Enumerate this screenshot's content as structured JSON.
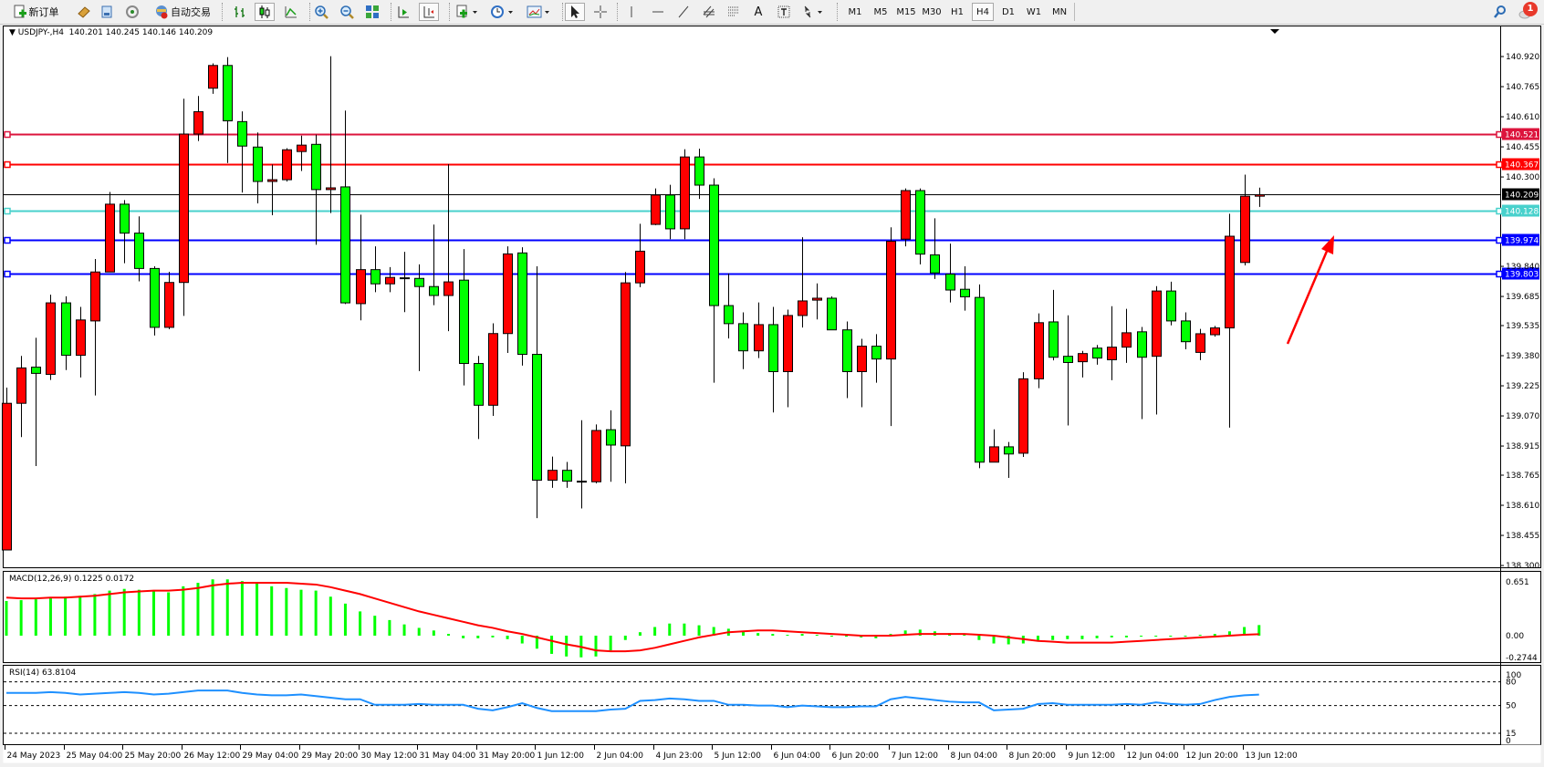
{
  "toolbar": {
    "new_order_label": "新订单",
    "autotrading_label": "自动交易",
    "icons": [
      "new-order-icon",
      "market-watch-icon",
      "data-window-icon",
      "navigator-icon",
      "autotrading-icon",
      "bar-chart-icon",
      "candlestick-icon",
      "line-chart-icon",
      "zoom-in-icon",
      "zoom-out-icon",
      "tile-windows-icon",
      "chart-shift-icon",
      "autoscroll-icon",
      "indicators-icon",
      "periods-icon",
      "templates-icon",
      "cursor-icon",
      "crosshair-icon",
      "vertical-line-icon",
      "horizontal-line-icon",
      "trendline-icon",
      "equidistant-channel-icon",
      "fibonacci-icon",
      "text-icon",
      "text-label-icon",
      "arrows-icon",
      "search-icon",
      "alerts-icon"
    ],
    "text_tool_label": "A",
    "timeframes": [
      "M1",
      "M5",
      "M15",
      "M30",
      "H1",
      "H4",
      "D1",
      "W1",
      "MN"
    ],
    "selected_timeframe": "H4",
    "notification_count": "1"
  },
  "chart": {
    "symbol_header": "USDJPY-,H4  140.201 140.245 140.146 140.209",
    "colors": {
      "bull": "#ff0000",
      "bear": "#00ff00",
      "wick": "#000000",
      "macd_hist": "#00ff00",
      "macd_signal": "#ff0000",
      "rsi": "#1e90ff"
    },
    "price_ticks": [
      "140.920",
      "140.765",
      "140.610",
      "140.455",
      "140.300",
      "139.840",
      "139.685",
      "139.535",
      "139.380",
      "139.225",
      "139.070",
      "138.915",
      "138.765",
      "138.610",
      "138.455",
      "138.300"
    ],
    "hlines": [
      {
        "price": "140.521",
        "color": "#dc143c"
      },
      {
        "price": "140.367",
        "color": "#ff0000"
      },
      {
        "price": "140.209",
        "color": "#000000",
        "bid": true
      },
      {
        "price": "140.128",
        "color": "#48d1cc"
      },
      {
        "price": "139.974",
        "color": "#0000ff"
      },
      {
        "price": "139.803",
        "color": "#0000ff"
      }
    ],
    "time_labels": [
      "24 May 2023",
      "25 May 04:00",
      "25 May 20:00",
      "26 May 12:00",
      "29 May 04:00",
      "29 May 20:00",
      "30 May 12:00",
      "31 May 04:00",
      "31 May 20:00",
      "1 Jun 12:00",
      "2 Jun 04:00",
      "4 Jun 23:00",
      "5 Jun 12:00",
      "6 Jun 04:00",
      "6 Jun 20:00",
      "7 Jun 12:00",
      "8 Jun 04:00",
      "8 Jun 20:00",
      "9 Jun 12:00",
      "12 Jun 04:00",
      "12 Jun 20:00",
      "13 Jun 12:00"
    ],
    "annotation": {
      "type": "arrow",
      "color": "#ff0000",
      "direction": "up-right"
    }
  },
  "chart_data": {
    "type": "candlestick",
    "ohlc_order": [
      "open",
      "high",
      "low",
      "close"
    ],
    "ylim": [
      138.3,
      140.98
    ],
    "candles": [
      [
        138.38,
        139.216,
        138.38,
        139.135
      ],
      [
        139.135,
        139.379,
        138.961,
        139.317
      ],
      [
        139.321,
        139.472,
        138.812,
        139.289
      ],
      [
        139.284,
        139.694,
        139.255,
        139.652
      ],
      [
        139.652,
        139.686,
        139.306,
        139.382
      ],
      [
        139.382,
        139.631,
        139.268,
        139.564
      ],
      [
        139.559,
        139.878,
        139.175,
        139.811
      ],
      [
        139.811,
        140.223,
        139.811,
        140.16
      ],
      [
        140.16,
        140.181,
        139.856,
        140.011
      ],
      [
        140.011,
        140.097,
        139.763,
        139.829
      ],
      [
        139.829,
        139.84,
        139.484,
        139.526
      ],
      [
        139.526,
        139.812,
        139.516,
        139.757
      ],
      [
        139.757,
        140.703,
        139.585,
        140.521
      ],
      [
        140.521,
        140.717,
        140.485,
        140.636
      ],
      [
        140.757,
        140.885,
        140.728,
        140.874
      ],
      [
        140.874,
        140.917,
        140.372,
        140.589
      ],
      [
        140.585,
        140.638,
        140.22,
        140.459
      ],
      [
        140.454,
        140.529,
        140.164,
        140.277
      ],
      [
        140.277,
        140.364,
        140.103,
        140.286
      ],
      [
        140.286,
        140.448,
        140.277,
        140.44
      ],
      [
        140.431,
        140.513,
        140.331,
        140.464
      ],
      [
        140.468,
        140.518,
        139.951,
        140.235
      ],
      [
        140.235,
        140.922,
        140.114,
        140.244
      ],
      [
        140.249,
        140.642,
        139.646,
        139.652
      ],
      [
        139.648,
        140.106,
        139.562,
        139.823
      ],
      [
        139.823,
        139.943,
        139.707,
        139.75
      ],
      [
        139.75,
        139.836,
        139.707,
        139.783
      ],
      [
        139.781,
        139.915,
        139.604,
        139.778
      ],
      [
        139.778,
        139.85,
        139.301,
        139.736
      ],
      [
        139.736,
        140.055,
        139.64,
        139.69
      ],
      [
        139.69,
        140.366,
        139.506,
        139.76
      ],
      [
        139.769,
        139.929,
        139.227,
        139.34
      ],
      [
        139.34,
        139.379,
        138.951,
        139.125
      ],
      [
        139.125,
        139.547,
        139.07,
        139.494
      ],
      [
        139.494,
        139.943,
        139.394,
        139.904
      ],
      [
        139.909,
        139.938,
        139.329,
        139.387
      ],
      [
        139.387,
        139.84,
        138.544,
        138.739
      ],
      [
        138.739,
        138.861,
        138.7,
        138.79
      ],
      [
        138.79,
        138.833,
        138.7,
        138.734
      ],
      [
        138.734,
        139.048,
        138.594,
        138.731
      ],
      [
        138.731,
        139.026,
        138.723,
        138.995
      ],
      [
        138.999,
        139.099,
        138.731,
        138.92
      ],
      [
        138.916,
        139.811,
        138.723,
        139.755
      ],
      [
        139.755,
        140.059,
        139.733,
        139.918
      ],
      [
        140.056,
        140.241,
        140.052,
        140.207
      ],
      [
        140.207,
        140.26,
        139.98,
        140.033
      ],
      [
        140.033,
        140.443,
        139.98,
        140.403
      ],
      [
        140.403,
        140.446,
        140.187,
        140.258
      ],
      [
        140.258,
        140.293,
        139.241,
        139.638
      ],
      [
        139.638,
        139.803,
        139.469,
        139.545
      ],
      [
        139.545,
        139.603,
        139.311,
        139.405
      ],
      [
        139.405,
        139.654,
        139.368,
        139.54
      ],
      [
        139.54,
        139.631,
        139.088,
        139.298
      ],
      [
        139.298,
        139.617,
        139.115,
        139.587
      ],
      [
        139.587,
        139.99,
        139.525,
        139.662
      ],
      [
        139.666,
        139.752,
        139.567,
        139.676
      ],
      [
        139.676,
        139.685,
        139.513,
        139.513
      ],
      [
        139.513,
        139.556,
        139.162,
        139.298
      ],
      [
        139.298,
        139.467,
        139.115,
        139.429
      ],
      [
        139.429,
        139.491,
        139.241,
        139.363
      ],
      [
        139.363,
        140.041,
        139.018,
        139.969
      ],
      [
        139.98,
        140.241,
        139.943,
        140.23
      ],
      [
        140.23,
        140.241,
        139.85,
        139.903
      ],
      [
        139.899,
        140.087,
        139.775,
        139.806
      ],
      [
        139.8,
        139.957,
        139.654,
        139.718
      ],
      [
        139.722,
        139.84,
        139.612,
        139.683
      ],
      [
        139.68,
        139.747,
        138.801,
        138.832
      ],
      [
        138.832,
        139.001,
        138.832,
        138.911
      ],
      [
        138.911,
        138.936,
        138.751,
        138.874
      ],
      [
        138.878,
        139.295,
        138.859,
        139.261
      ],
      [
        139.261,
        139.598,
        139.213,
        139.55
      ],
      [
        139.554,
        139.719,
        139.356,
        139.372
      ],
      [
        139.377,
        139.588,
        139.021,
        139.345
      ],
      [
        139.349,
        139.405,
        139.268,
        139.391
      ],
      [
        139.419,
        139.435,
        139.334,
        139.368
      ],
      [
        139.359,
        139.635,
        139.254,
        139.424
      ],
      [
        139.424,
        139.621,
        139.343,
        139.498
      ],
      [
        139.503,
        139.528,
        139.054,
        139.372
      ],
      [
        139.377,
        139.738,
        139.077,
        139.713
      ],
      [
        139.713,
        139.761,
        139.536,
        139.559
      ],
      [
        139.559,
        139.603,
        139.413,
        139.452
      ],
      [
        139.397,
        139.518,
        139.357,
        139.493
      ],
      [
        139.488,
        139.533,
        139.478,
        139.523
      ],
      [
        139.523,
        140.111,
        139.01,
        139.995
      ],
      [
        139.86,
        140.312,
        139.845,
        140.201
      ],
      [
        140.201,
        140.245,
        140.146,
        140.209
      ]
    ],
    "macd": {
      "label": "MACD(12,26,9) 0.1225 0.0172",
      "ticks": [
        "0.651",
        "0.00",
        "-0.2744"
      ],
      "ylim": [
        -0.2744,
        0.651
      ],
      "histogram": [
        0.4,
        0.41,
        0.42,
        0.44,
        0.45,
        0.46,
        0.48,
        0.52,
        0.54,
        0.53,
        0.52,
        0.5,
        0.57,
        0.61,
        0.65,
        0.65,
        0.63,
        0.6,
        0.57,
        0.55,
        0.53,
        0.52,
        0.45,
        0.37,
        0.28,
        0.23,
        0.18,
        0.13,
        0.09,
        0.06,
        0.02,
        -0.03,
        -0.03,
        -0.02,
        -0.04,
        -0.09,
        -0.15,
        -0.21,
        -0.24,
        -0.25,
        -0.24,
        -0.17,
        -0.05,
        0.04,
        0.1,
        0.14,
        0.14,
        0.12,
        0.1,
        0.08,
        0.05,
        0.03,
        0.02,
        0.01,
        0.02,
        0.01,
        0.0,
        -0.01,
        -0.02,
        -0.03,
        0.02,
        0.06,
        0.07,
        0.05,
        0.03,
        0.01,
        -0.05,
        -0.09,
        -0.1,
        -0.09,
        -0.06,
        -0.05,
        -0.04,
        -0.04,
        -0.03,
        -0.02,
        -0.02,
        -0.01,
        -0.01,
        0.0,
        0.0,
        0.01,
        0.02,
        0.05,
        0.1,
        0.1225
      ],
      "signal": [
        0.44,
        0.43,
        0.43,
        0.44,
        0.44,
        0.45,
        0.46,
        0.48,
        0.5,
        0.51,
        0.52,
        0.52,
        0.53,
        0.55,
        0.58,
        0.6,
        0.61,
        0.61,
        0.61,
        0.61,
        0.6,
        0.59,
        0.56,
        0.52,
        0.48,
        0.43,
        0.38,
        0.33,
        0.28,
        0.24,
        0.2,
        0.16,
        0.12,
        0.09,
        0.05,
        0.02,
        -0.02,
        -0.06,
        -0.1,
        -0.13,
        -0.17,
        -0.18,
        -0.18,
        -0.17,
        -0.14,
        -0.1,
        -0.06,
        -0.02,
        0.01,
        0.04,
        0.05,
        0.06,
        0.06,
        0.05,
        0.04,
        0.03,
        0.02,
        0.01,
        0.0,
        0.0,
        0.0,
        0.01,
        0.02,
        0.02,
        0.02,
        0.02,
        0.01,
        0.0,
        -0.02,
        -0.04,
        -0.06,
        -0.07,
        -0.08,
        -0.08,
        -0.08,
        -0.08,
        -0.07,
        -0.06,
        -0.05,
        -0.04,
        -0.03,
        -0.02,
        -0.01,
        0.0,
        0.01,
        0.0172
      ]
    },
    "rsi": {
      "label": "RSI(14) 63.8104",
      "ticks": [
        "100",
        "80",
        "50",
        "15",
        "0"
      ],
      "levels": [
        80,
        50,
        15
      ],
      "ylim": [
        0,
        100
      ],
      "values": [
        66,
        66,
        66,
        67,
        66,
        64,
        65,
        66,
        67,
        66,
        64,
        65,
        67,
        69,
        69,
        69,
        66,
        64,
        63,
        63,
        64,
        62,
        60,
        58,
        58,
        51,
        51,
        51,
        52,
        51,
        51,
        51,
        46,
        44,
        48,
        53,
        47,
        43,
        43,
        43,
        43,
        45,
        46,
        56,
        57,
        59,
        58,
        56,
        56,
        51,
        51,
        50,
        50,
        48,
        50,
        49,
        48,
        48,
        49,
        49,
        58,
        61,
        59,
        57,
        55,
        54,
        54,
        44,
        45,
        46,
        52,
        53,
        51,
        51,
        51,
        51,
        52,
        51,
        54,
        52,
        51,
        52,
        57,
        61,
        63,
        63.81
      ]
    }
  }
}
